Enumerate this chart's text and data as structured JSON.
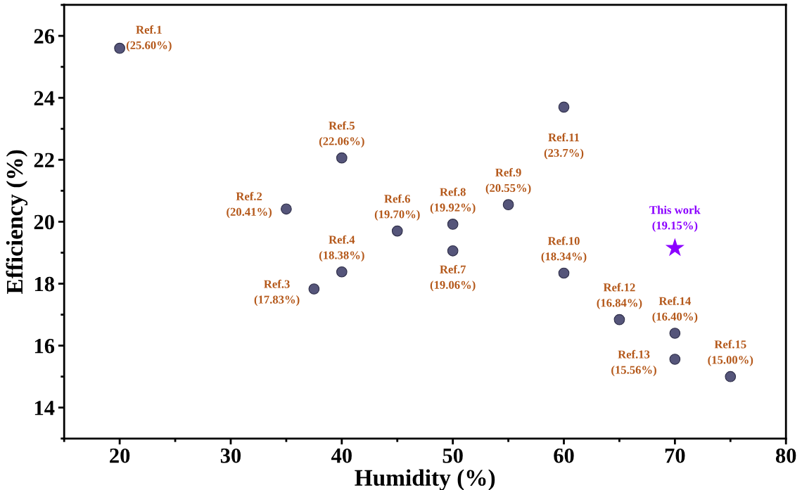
{
  "chart_data": {
    "type": "scatter",
    "xlabel": "Humidity (%)",
    "ylabel": "Efficiency (%)",
    "xlim": [
      15,
      80
    ],
    "xticks": [
      20,
      30,
      40,
      50,
      60,
      70,
      80
    ],
    "ylim": [
      13,
      27
    ],
    "yticks": [
      14,
      16,
      18,
      20,
      22,
      24,
      26
    ],
    "grid": false,
    "series": [
      {
        "color": "#55557a",
        "marker": "circle",
        "x": [
          20,
          35,
          37.5,
          40,
          40,
          45,
          50,
          50,
          55,
          60,
          60,
          65,
          70,
          70,
          75
        ],
        "values": [
          25.6,
          20.41,
          17.83,
          18.38,
          22.06,
          19.7,
          19.06,
          19.92,
          20.55,
          18.34,
          23.7,
          16.84,
          15.56,
          16.4,
          15.0
        ]
      },
      {
        "color": "#8b00ff",
        "marker": "star",
        "x": [
          70
        ],
        "values": [
          19.15
        ]
      }
    ],
    "annotations": [
      {
        "text": "Ref.1\n(25.60%)",
        "x": 20,
        "y": 25.6
      },
      {
        "text": "Ref.2\n(20.41%)",
        "x": 35,
        "y": 20.41
      },
      {
        "text": "Ref.3\n(17.83%)",
        "x": 37.5,
        "y": 17.83
      },
      {
        "text": "Ref.4\n(18.38%)",
        "x": 40,
        "y": 18.38
      },
      {
        "text": "Ref.5\n(22.06%)",
        "x": 40,
        "y": 22.06
      },
      {
        "text": "Ref.6\n(19.70%)",
        "x": 45,
        "y": 19.7
      },
      {
        "text": "Ref.7\n(19.06%)",
        "x": 50,
        "y": 19.06
      },
      {
        "text": "Ref.8\n(19.92%)",
        "x": 50,
        "y": 19.92
      },
      {
        "text": "Ref.9\n(20.55%)",
        "x": 55,
        "y": 20.55
      },
      {
        "text": "Ref.10\n(18.34%)",
        "x": 60,
        "y": 18.34
      },
      {
        "text": "Ref.11\n(23.7%)",
        "x": 60,
        "y": 23.7
      },
      {
        "text": "Ref.12\n(16.84%)",
        "x": 65,
        "y": 16.84
      },
      {
        "text": "Ref.13\n(15.56%)",
        "x": 70,
        "y": 15.56
      },
      {
        "text": "Ref.14\n(16.40%)",
        "x": 70,
        "y": 16.4
      },
      {
        "text": "Ref.15\n(15.00%)",
        "x": 75,
        "y": 15.0
      },
      {
        "text": "This work\n(19.15%)",
        "x": 70,
        "y": 19.15
      }
    ]
  }
}
